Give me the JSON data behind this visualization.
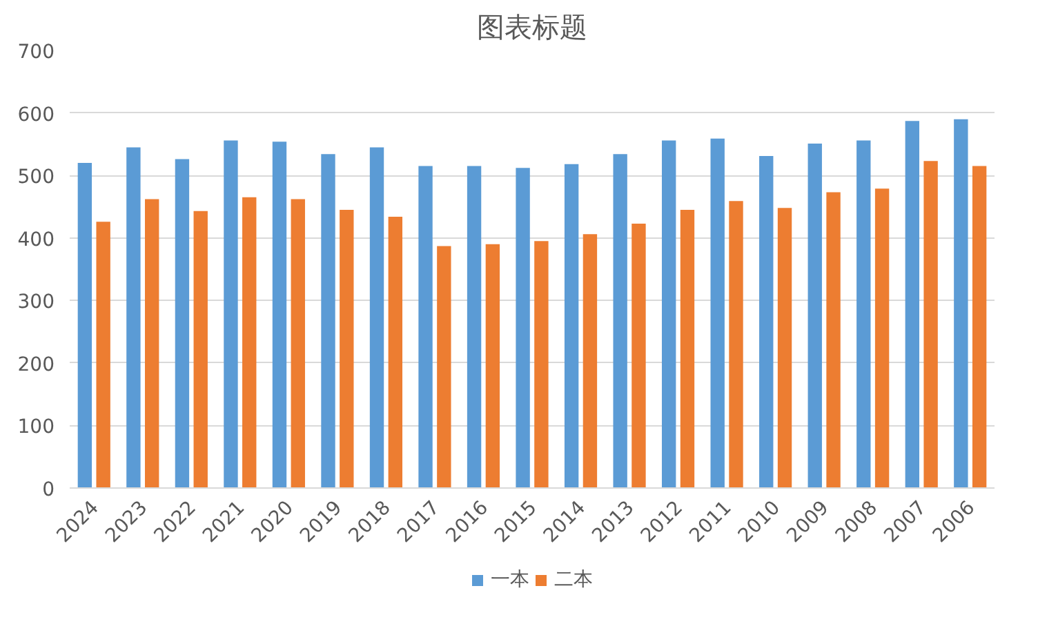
{
  "chart_data": {
    "type": "bar",
    "title": "图表标题",
    "categories": [
      "2024",
      "2023",
      "2022",
      "2021",
      "2020",
      "2019",
      "2018",
      "2017",
      "2016",
      "2015",
      "2014",
      "2013",
      "2012",
      "2011",
      "2010",
      "2009",
      "2008",
      "2007",
      "2006"
    ],
    "series": [
      {
        "name": "一本",
        "color": "#5b9bd5",
        "values": [
          520,
          545,
          526,
          556,
          554,
          534,
          545,
          515,
          515,
          512,
          518,
          534,
          556,
          559,
          531,
          551,
          556,
          587,
          590
        ]
      },
      {
        "name": "二本",
        "color": "#ed7d31",
        "values": [
          426,
          462,
          443,
          465,
          462,
          445,
          434,
          387,
          390,
          395,
          406,
          423,
          445,
          459,
          448,
          473,
          479,
          523,
          515
        ]
      }
    ],
    "ylim": [
      0,
      700
    ],
    "yticks": [
      0,
      100,
      200,
      300,
      400,
      500,
      600,
      700
    ],
    "grid": "y",
    "legend": "bottom"
  }
}
